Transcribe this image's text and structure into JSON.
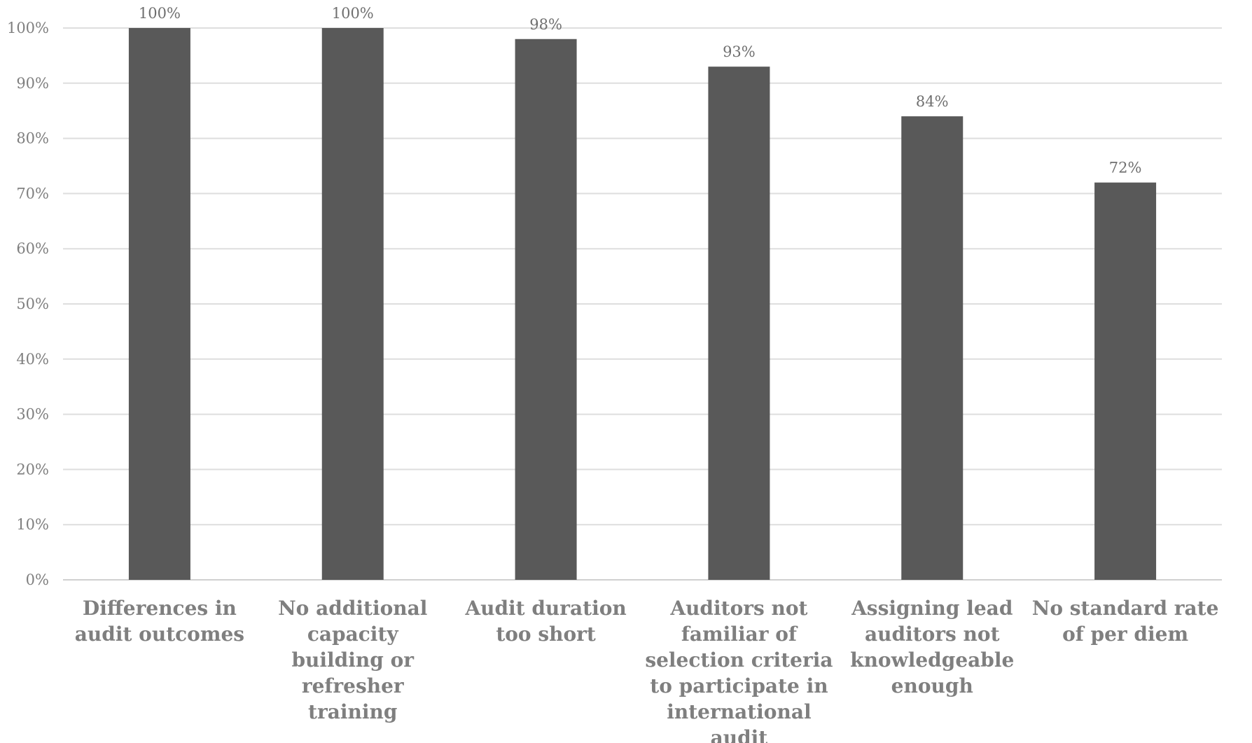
{
  "chart_data": {
    "type": "bar",
    "title": "",
    "xlabel": "",
    "ylabel": "",
    "ylim": [
      0,
      100
    ],
    "ytick_step": 10,
    "ytick_suffix": "%",
    "grid": true,
    "bar_color": "#595959",
    "categories": [
      [
        "Differences in",
        "audit outcomes"
      ],
      [
        "No additional",
        "capacity",
        "building or",
        "refresher",
        "training"
      ],
      [
        "Audit duration",
        "too short"
      ],
      [
        "Auditors not",
        "familiar of",
        "selection criteria",
        "to participate in",
        "international",
        "audit"
      ],
      [
        "Assigning lead",
        "auditors not",
        "knowledgeable",
        "enough"
      ],
      [
        "No standard rate",
        "of per diem"
      ]
    ],
    "values": [
      100,
      100,
      98,
      93,
      84,
      72
    ],
    "data_labels": [
      "100%",
      "100%",
      "98%",
      "93%",
      "84%",
      "72%"
    ]
  }
}
